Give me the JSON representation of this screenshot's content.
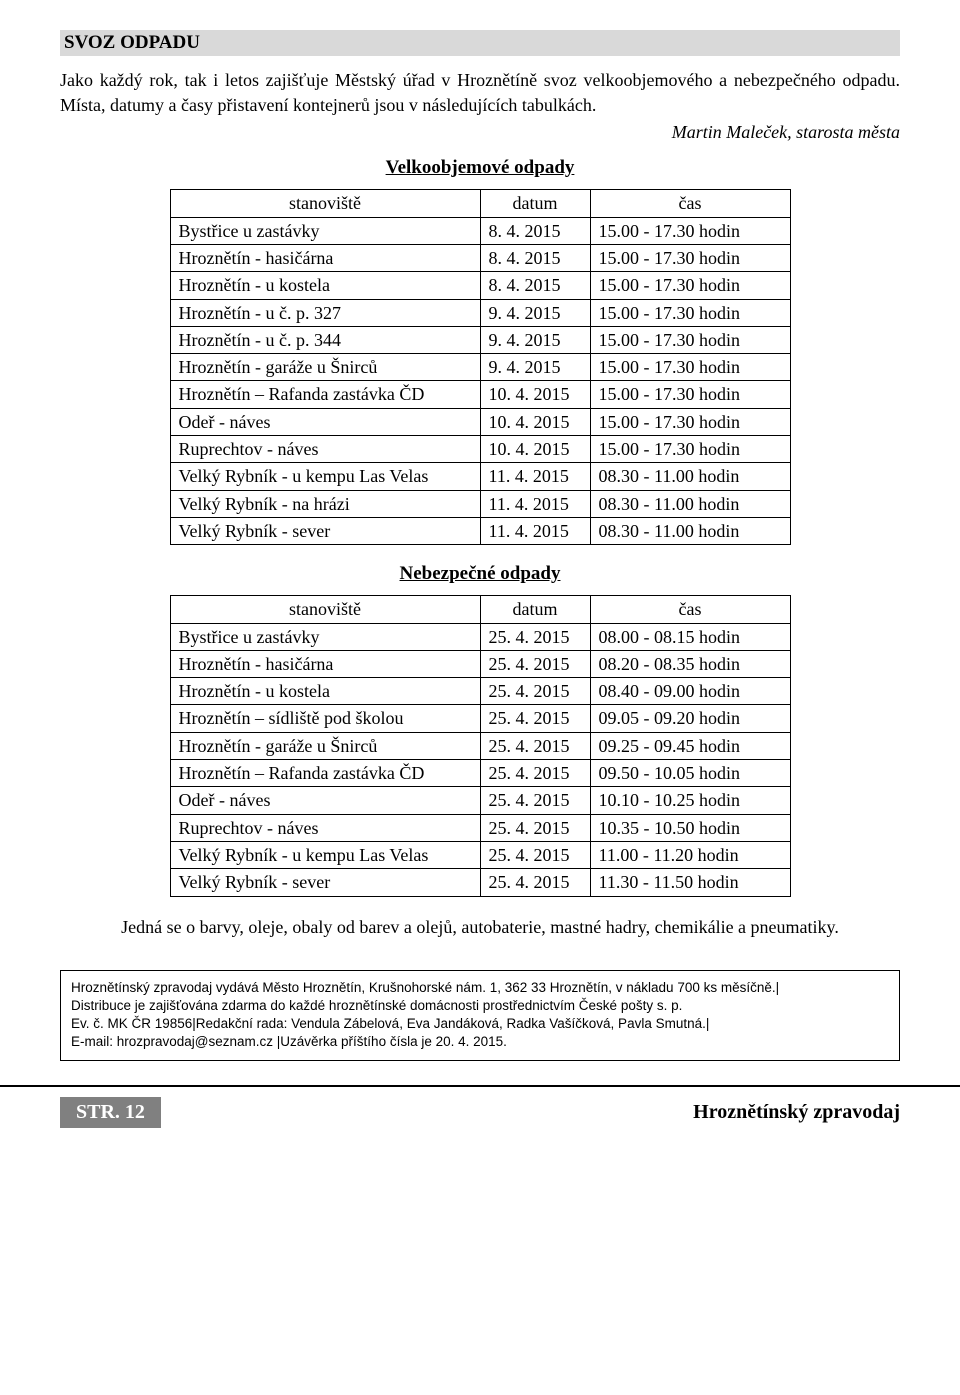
{
  "section_title": "SVOZ ODPADU",
  "intro": "Jako každý rok, tak i letos zajišťuje Městský úřad v Hroznětíně svoz velkoobjemového a nebezpečného odpadu. Místa, datumy a časy přistavení kontejnerů jsou v následujících tabulkách.",
  "signature": "Martin Maleček, starosta města",
  "table1": {
    "heading": "Velkoobjemové odpady",
    "headers": {
      "c1": "stanoviště",
      "c2": "datum",
      "c3": "čas"
    },
    "rows": [
      {
        "c1": "Bystřice u zastávky",
        "c2": "8. 4. 2015",
        "c3": "15.00 - 17.30 hodin"
      },
      {
        "c1": "Hroznětín - hasičárna",
        "c2": "8. 4. 2015",
        "c3": "15.00 - 17.30 hodin"
      },
      {
        "c1": "Hroznětín - u kostela",
        "c2": "8. 4. 2015",
        "c3": "15.00 - 17.30 hodin"
      },
      {
        "c1": "Hroznětín - u č. p. 327",
        "c2": "9. 4. 2015",
        "c3": "15.00 - 17.30 hodin"
      },
      {
        "c1": "Hroznětín - u č. p. 344",
        "c2": "9. 4. 2015",
        "c3": "15.00 - 17.30 hodin"
      },
      {
        "c1": "Hroznětín - garáže u Šnirců",
        "c2": "9. 4. 2015",
        "c3": "15.00 - 17.30 hodin"
      },
      {
        "c1": "Hroznětín – Rafanda zastávka ČD",
        "c2": "10. 4. 2015",
        "c3": "15.00 - 17.30 hodin"
      },
      {
        "c1": "Odeř - náves",
        "c2": "10. 4. 2015",
        "c3": "15.00 - 17.30 hodin"
      },
      {
        "c1": "Ruprechtov - náves",
        "c2": "10. 4. 2015",
        "c3": "15.00 - 17.30 hodin"
      },
      {
        "c1": "Velký Rybník - u kempu Las Velas",
        "c2": "11. 4. 2015",
        "c3": "08.30 - 11.00 hodin"
      },
      {
        "c1": "Velký Rybník - na hrázi",
        "c2": "11. 4. 2015",
        "c3": "08.30 - 11.00 hodin"
      },
      {
        "c1": "Velký Rybník - sever",
        "c2": "11. 4. 2015",
        "c3": "08.30 - 11.00 hodin"
      }
    ]
  },
  "table2": {
    "heading": "Nebezpečné odpady",
    "headers": {
      "c1": "stanoviště",
      "c2": "datum",
      "c3": "čas"
    },
    "rows": [
      {
        "c1": "Bystřice u zastávky",
        "c2": "25. 4. 2015",
        "c3": "08.00 - 08.15 hodin"
      },
      {
        "c1": "Hroznětín - hasičárna",
        "c2": "25. 4. 2015",
        "c3": "08.20 - 08.35 hodin"
      },
      {
        "c1": "Hroznětín - u kostela",
        "c2": "25. 4. 2015",
        "c3": "08.40 - 09.00 hodin"
      },
      {
        "c1": "Hroznětín – sídliště pod školou",
        "c2": "25. 4. 2015",
        "c3": "09.05 - 09.20 hodin"
      },
      {
        "c1": "Hroznětín - garáže u Šnirců",
        "c2": "25. 4. 2015",
        "c3": "09.25 - 09.45 hodin"
      },
      {
        "c1": "Hroznětín – Rafanda zastávka ČD",
        "c2": "25. 4. 2015",
        "c3": "09.50 - 10.05 hodin"
      },
      {
        "c1": "Odeř - náves",
        "c2": "25. 4. 2015",
        "c3": "10.10 - 10.25 hodin"
      },
      {
        "c1": "Ruprechtov - náves",
        "c2": "25. 4. 2015",
        "c3": "10.35 - 10.50 hodin"
      },
      {
        "c1": "Velký Rybník - u kempu Las Velas",
        "c2": "25. 4. 2015",
        "c3": "11.00 - 11.20 hodin"
      },
      {
        "c1": "Velký Rybník - sever",
        "c2": "25. 4. 2015",
        "c3": "11.30 - 11.50 hodin"
      }
    ]
  },
  "closing": "Jedná se o barvy, oleje, obaly od barev a olejů, autobaterie, mastné hadry, chemikálie a pneumatiky.",
  "imprint": {
    "l1": "Hroznětínský zpravodaj vydává Město Hroznětín, Krušnohorské nám. 1, 362 33 Hroznětín, v nákladu 700 ks měsíčně.|",
    "l2": "Distribuce je zajišťována zdarma do každé hroznětínské domácnosti prostřednictvím České pošty s. p.",
    "l3": "Ev. č. MK ČR 19856|Redakční rada: Vendula Zábelová, Eva Jandáková, Radka Vašíčková, Pavla Smutná.|",
    "l4": "E-mail: hrozpravodaj@seznam.cz |Uzávěrka příštího čísla je 20. 4. 2015."
  },
  "footer": {
    "page": "STR. 12",
    "publication": "Hroznětínský zpravodaj"
  }
}
